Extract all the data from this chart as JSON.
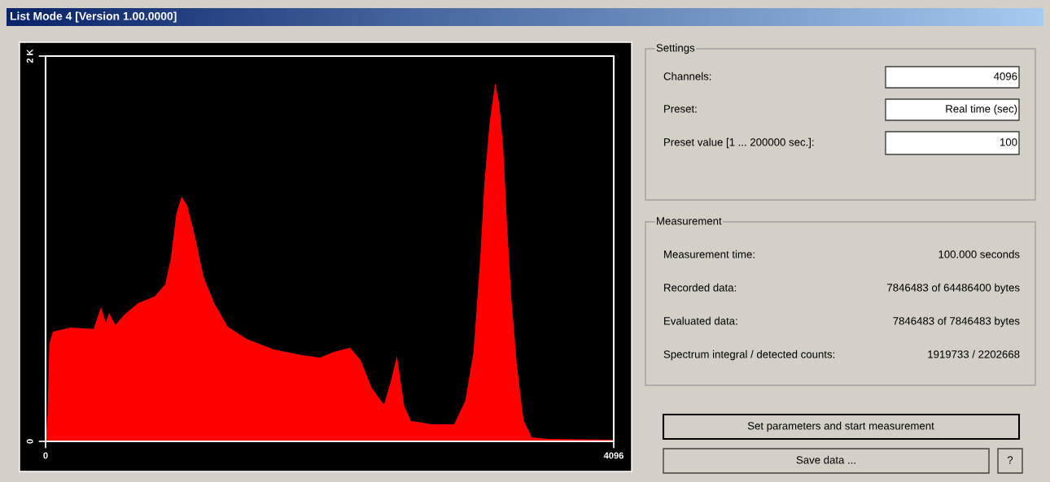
{
  "chart_data": {
    "type": "area",
    "title": "List Mode 4 [Version 1.00.0000]",
    "xlim": [
      0,
      4096
    ],
    "ylim": [
      0,
      2000
    ],
    "xticks": [
      0,
      4096
    ],
    "yticks": [
      0,
      {
        "value": 2000,
        "label": "2 K"
      }
    ],
    "series": [
      {
        "color": "#ff0000",
        "x": [
          0,
          14,
          27,
          53,
          180,
          346,
          399,
          434,
          458,
          503,
          570,
          669,
          786,
          863,
          904,
          943,
          980,
          1021,
          1080,
          1138,
          1215,
          1314,
          1449,
          1647,
          1843,
          1978,
          2077,
          2195,
          2271,
          2351,
          2439,
          2488,
          2533,
          2586,
          2635,
          2781,
          2946,
          3026,
          3085,
          3134,
          3163,
          3202,
          3241,
          3270,
          3300,
          3329,
          3358,
          3398,
          3446,
          3505,
          3620,
          4090
        ],
        "values": [
          0,
          139,
          507,
          570,
          591,
          583,
          697,
          616,
          667,
          604,
          659,
          718,
          752,
          815,
          954,
          1182,
          1271,
          1224,
          1056,
          857,
          718,
          595,
          532,
          477,
          448,
          435,
          464,
          486,
          422,
          279,
          190,
          308,
          443,
          182,
          106,
          89,
          89,
          211,
          464,
          954,
          1334,
          1659,
          1860,
          1756,
          1520,
          1098,
          743,
          393,
          110,
          21,
          13,
          8
        ]
      }
    ],
    "annotations": [
      "Settings",
      "Channels:",
      "4096",
      "Preset:",
      "Real time (sec)",
      "Preset value [1 ... 200000 sec.]:",
      "100",
      "Measurement",
      "Measurement time:",
      "100.000 seconds",
      "Recorded data:",
      "7846483 of 64486400 bytes",
      "Evaluated data:",
      "7846483 of 7846483 bytes",
      "Spectrum integral / detected counts:",
      "1919733 / 2202668",
      "Set parameters and start measurement",
      "Save data ...",
      "?"
    ]
  }
}
